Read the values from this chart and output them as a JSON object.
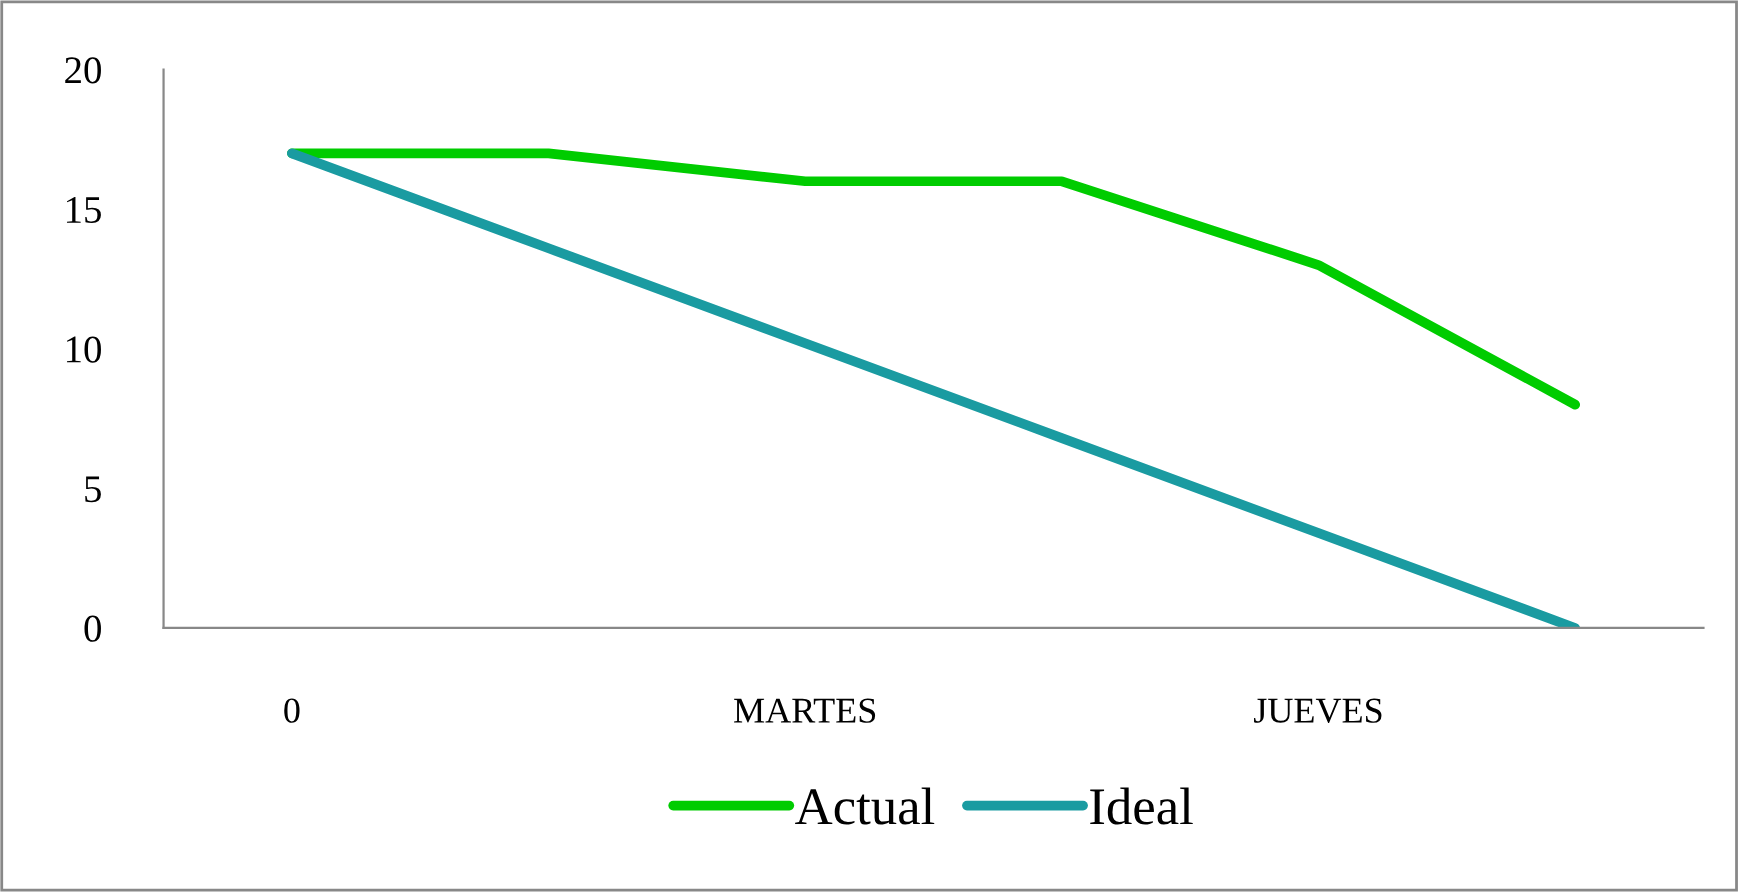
{
  "chart_data": {
    "type": "line",
    "categories": [
      "0",
      null,
      "MARTES",
      null,
      "JUEVES",
      null
    ],
    "series": [
      {
        "name": "Actual",
        "color": "#00cc00",
        "values": [
          17,
          17,
          16,
          16,
          13,
          8
        ]
      },
      {
        "name": "Ideal",
        "color": "#1a9ba1",
        "values": [
          17,
          13.6,
          10.2,
          6.8,
          3.4,
          0
        ]
      }
    ],
    "ylim": [
      0,
      20
    ],
    "yticks": [
      0,
      5,
      10,
      15,
      20
    ],
    "grid": false,
    "legend": "bottom",
    "marker": "none",
    "line_style": "solid"
  }
}
